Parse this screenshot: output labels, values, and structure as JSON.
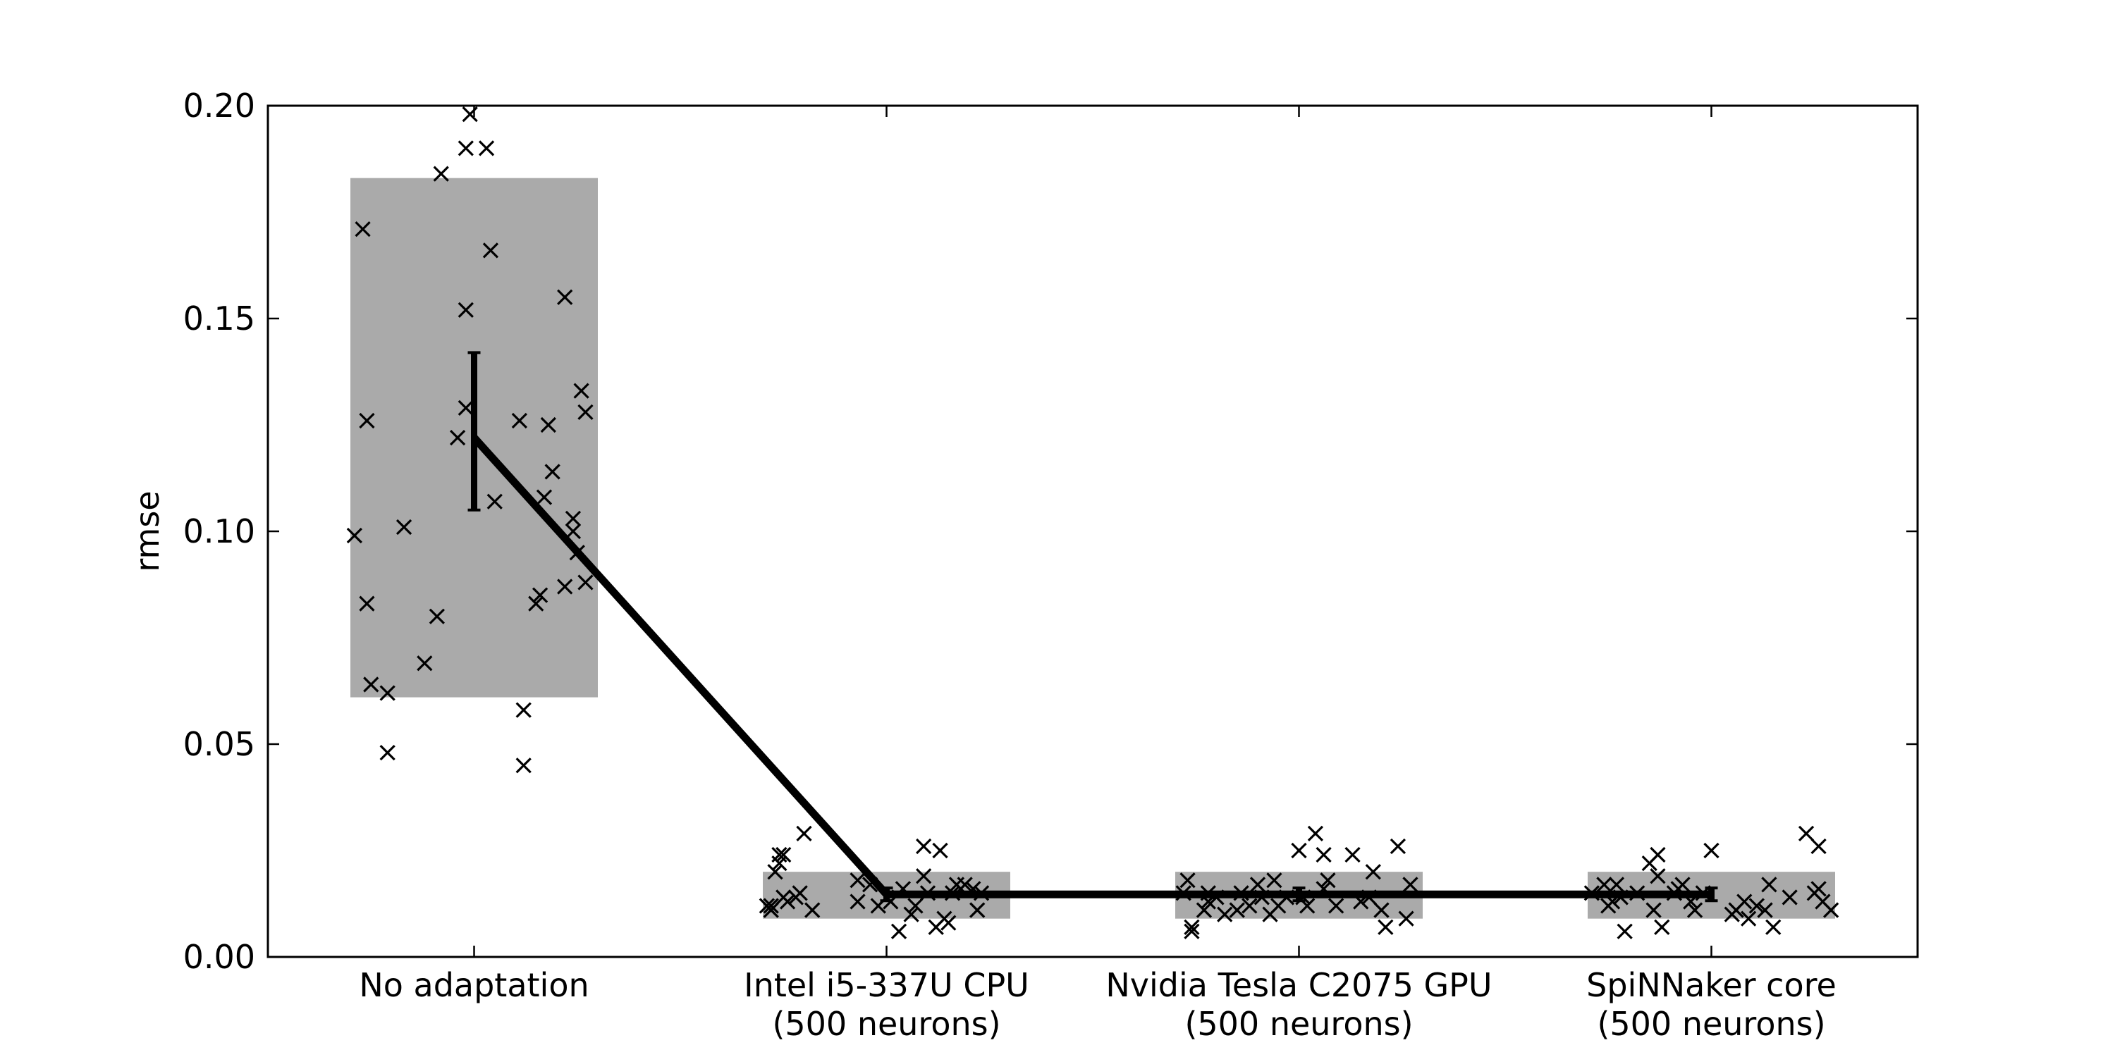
{
  "chart_data": {
    "type": "scatter",
    "title": "",
    "xlabel": "",
    "ylabel": "rmse",
    "ylim": [
      0,
      0.2
    ],
    "yticks": [
      "0.00",
      "0.05",
      "0.10",
      "0.15",
      "0.20"
    ],
    "grid": false,
    "categories": [
      {
        "label_lines": [
          "No adaptation"
        ]
      },
      {
        "label_lines": [
          "Intel i5-337U CPU",
          "(500 neurons)"
        ]
      },
      {
        "label_lines": [
          "Nvidia Tesla C2075 GPU",
          "(500 neurons)"
        ]
      },
      {
        "label_lines": [
          "SpiNNaker core",
          "(500 neurons)"
        ]
      }
    ],
    "groups": [
      {
        "mean": 0.122,
        "ci": [
          0.105,
          0.142
        ],
        "range": [
          0.061,
          0.183
        ],
        "points": [
          {
            "dx": -0.29,
            "y": 0.099
          },
          {
            "dx": -0.27,
            "y": 0.171
          },
          {
            "dx": -0.26,
            "y": 0.126
          },
          {
            "dx": -0.26,
            "y": 0.083
          },
          {
            "dx": -0.25,
            "y": 0.064
          },
          {
            "dx": -0.21,
            "y": 0.062
          },
          {
            "dx": -0.21,
            "y": 0.048
          },
          {
            "dx": -0.17,
            "y": 0.101
          },
          {
            "dx": -0.12,
            "y": 0.069
          },
          {
            "dx": -0.09,
            "y": 0.08
          },
          {
            "dx": -0.08,
            "y": 0.184
          },
          {
            "dx": -0.04,
            "y": 0.122
          },
          {
            "dx": -0.02,
            "y": 0.19
          },
          {
            "dx": -0.02,
            "y": 0.152
          },
          {
            "dx": -0.02,
            "y": 0.129
          },
          {
            "dx": -0.01,
            "y": 0.198
          },
          {
            "dx": 0.03,
            "y": 0.19
          },
          {
            "dx": 0.04,
            "y": 0.166
          },
          {
            "dx": 0.05,
            "y": 0.107
          },
          {
            "dx": 0.11,
            "y": 0.126
          },
          {
            "dx": 0.12,
            "y": 0.058
          },
          {
            "dx": 0.12,
            "y": 0.045
          },
          {
            "dx": 0.15,
            "y": 0.083
          },
          {
            "dx": 0.16,
            "y": 0.085
          },
          {
            "dx": 0.17,
            "y": 0.108
          },
          {
            "dx": 0.18,
            "y": 0.125
          },
          {
            "dx": 0.19,
            "y": 0.114
          },
          {
            "dx": 0.22,
            "y": 0.087
          },
          {
            "dx": 0.22,
            "y": 0.155
          },
          {
            "dx": 0.24,
            "y": 0.103
          },
          {
            "dx": 0.24,
            "y": 0.1
          },
          {
            "dx": 0.25,
            "y": 0.095
          },
          {
            "dx": 0.26,
            "y": 0.133
          },
          {
            "dx": 0.27,
            "y": 0.088
          },
          {
            "dx": 0.27,
            "y": 0.128
          }
        ]
      },
      {
        "mean": 0.0147,
        "ci": [
          0.0132,
          0.0162
        ],
        "range": [
          0.009,
          0.02
        ],
        "points": [
          {
            "dx": -0.29,
            "y": 0.012
          },
          {
            "dx": -0.28,
            "y": 0.011
          },
          {
            "dx": -0.28,
            "y": 0.012
          },
          {
            "dx": -0.27,
            "y": 0.02
          },
          {
            "dx": -0.26,
            "y": 0.024
          },
          {
            "dx": -0.26,
            "y": 0.022
          },
          {
            "dx": -0.25,
            "y": 0.014
          },
          {
            "dx": -0.25,
            "y": 0.024
          },
          {
            "dx": -0.24,
            "y": 0.013
          },
          {
            "dx": -0.22,
            "y": 0.014
          },
          {
            "dx": -0.21,
            "y": 0.015
          },
          {
            "dx": -0.2,
            "y": 0.029
          },
          {
            "dx": -0.18,
            "y": 0.011
          },
          {
            "dx": -0.07,
            "y": 0.013
          },
          {
            "dx": -0.07,
            "y": 0.018
          },
          {
            "dx": -0.04,
            "y": 0.017
          },
          {
            "dx": -0.02,
            "y": 0.012
          },
          {
            "dx": 0.0,
            "y": 0.014
          },
          {
            "dx": 0.01,
            "y": 0.013
          },
          {
            "dx": 0.03,
            "y": 0.006
          },
          {
            "dx": 0.04,
            "y": 0.016
          },
          {
            "dx": 0.06,
            "y": 0.01
          },
          {
            "dx": 0.07,
            "y": 0.012
          },
          {
            "dx": 0.09,
            "y": 0.019
          },
          {
            "dx": 0.09,
            "y": 0.026
          },
          {
            "dx": 0.1,
            "y": 0.015
          },
          {
            "dx": 0.12,
            "y": 0.007
          },
          {
            "dx": 0.13,
            "y": 0.025
          },
          {
            "dx": 0.14,
            "y": 0.009
          },
          {
            "dx": 0.15,
            "y": 0.008
          },
          {
            "dx": 0.16,
            "y": 0.015
          },
          {
            "dx": 0.17,
            "y": 0.017
          },
          {
            "dx": 0.18,
            "y": 0.016
          },
          {
            "dx": 0.19,
            "y": 0.017
          },
          {
            "dx": 0.21,
            "y": 0.016
          },
          {
            "dx": 0.22,
            "y": 0.011
          },
          {
            "dx": 0.23,
            "y": 0.015
          }
        ]
      },
      {
        "mean": 0.0147,
        "ci": [
          0.0132,
          0.0162
        ],
        "range": [
          0.009,
          0.02
        ],
        "points": [
          {
            "dx": -0.28,
            "y": 0.015
          },
          {
            "dx": -0.27,
            "y": 0.018
          },
          {
            "dx": -0.26,
            "y": 0.006
          },
          {
            "dx": -0.26,
            "y": 0.007
          },
          {
            "dx": -0.23,
            "y": 0.011
          },
          {
            "dx": -0.22,
            "y": 0.013
          },
          {
            "dx": -0.22,
            "y": 0.015
          },
          {
            "dx": -0.2,
            "y": 0.014
          },
          {
            "dx": -0.18,
            "y": 0.01
          },
          {
            "dx": -0.15,
            "y": 0.011
          },
          {
            "dx": -0.14,
            "y": 0.015
          },
          {
            "dx": -0.12,
            "y": 0.012
          },
          {
            "dx": -0.1,
            "y": 0.017
          },
          {
            "dx": -0.09,
            "y": 0.014
          },
          {
            "dx": -0.07,
            "y": 0.01
          },
          {
            "dx": -0.06,
            "y": 0.018
          },
          {
            "dx": -0.05,
            "y": 0.012
          },
          {
            "dx": -0.03,
            "y": 0.014
          },
          {
            "dx": 0.0,
            "y": 0.025
          },
          {
            "dx": 0.01,
            "y": 0.014
          },
          {
            "dx": 0.02,
            "y": 0.012
          },
          {
            "dx": 0.04,
            "y": 0.029
          },
          {
            "dx": 0.06,
            "y": 0.024
          },
          {
            "dx": 0.06,
            "y": 0.016
          },
          {
            "dx": 0.07,
            "y": 0.018
          },
          {
            "dx": 0.09,
            "y": 0.012
          },
          {
            "dx": 0.13,
            "y": 0.024
          },
          {
            "dx": 0.15,
            "y": 0.013
          },
          {
            "dx": 0.17,
            "y": 0.014
          },
          {
            "dx": 0.18,
            "y": 0.02
          },
          {
            "dx": 0.2,
            "y": 0.011
          },
          {
            "dx": 0.21,
            "y": 0.007
          },
          {
            "dx": 0.24,
            "y": 0.026
          },
          {
            "dx": 0.26,
            "y": 0.009
          },
          {
            "dx": 0.27,
            "y": 0.017
          }
        ]
      },
      {
        "mean": 0.0147,
        "ci": [
          0.0132,
          0.0162
        ],
        "range": [
          0.009,
          0.02
        ],
        "points": [
          {
            "dx": -0.29,
            "y": 0.015
          },
          {
            "dx": -0.26,
            "y": 0.017
          },
          {
            "dx": -0.25,
            "y": 0.012
          },
          {
            "dx": -0.24,
            "y": 0.013
          },
          {
            "dx": -0.23,
            "y": 0.017
          },
          {
            "dx": -0.22,
            "y": 0.014
          },
          {
            "dx": -0.21,
            "y": 0.006
          },
          {
            "dx": -0.18,
            "y": 0.015
          },
          {
            "dx": -0.15,
            "y": 0.022
          },
          {
            "dx": -0.14,
            "y": 0.011
          },
          {
            "dx": -0.13,
            "y": 0.024
          },
          {
            "dx": -0.13,
            "y": 0.019
          },
          {
            "dx": -0.12,
            "y": 0.007
          },
          {
            "dx": -0.09,
            "y": 0.015
          },
          {
            "dx": -0.08,
            "y": 0.016
          },
          {
            "dx": -0.07,
            "y": 0.017
          },
          {
            "dx": -0.05,
            "y": 0.013
          },
          {
            "dx": -0.04,
            "y": 0.011
          },
          {
            "dx": -0.02,
            "y": 0.015
          },
          {
            "dx": 0.0,
            "y": 0.025
          },
          {
            "dx": 0.05,
            "y": 0.01
          },
          {
            "dx": 0.06,
            "y": 0.011
          },
          {
            "dx": 0.08,
            "y": 0.013
          },
          {
            "dx": 0.09,
            "y": 0.009
          },
          {
            "dx": 0.11,
            "y": 0.012
          },
          {
            "dx": 0.13,
            "y": 0.011
          },
          {
            "dx": 0.14,
            "y": 0.017
          },
          {
            "dx": 0.15,
            "y": 0.007
          },
          {
            "dx": 0.19,
            "y": 0.014
          },
          {
            "dx": 0.23,
            "y": 0.029
          },
          {
            "dx": 0.25,
            "y": 0.015
          },
          {
            "dx": 0.26,
            "y": 0.016
          },
          {
            "dx": 0.26,
            "y": 0.026
          },
          {
            "dx": 0.27,
            "y": 0.013
          },
          {
            "dx": 0.29,
            "y": 0.011
          }
        ]
      }
    ]
  }
}
